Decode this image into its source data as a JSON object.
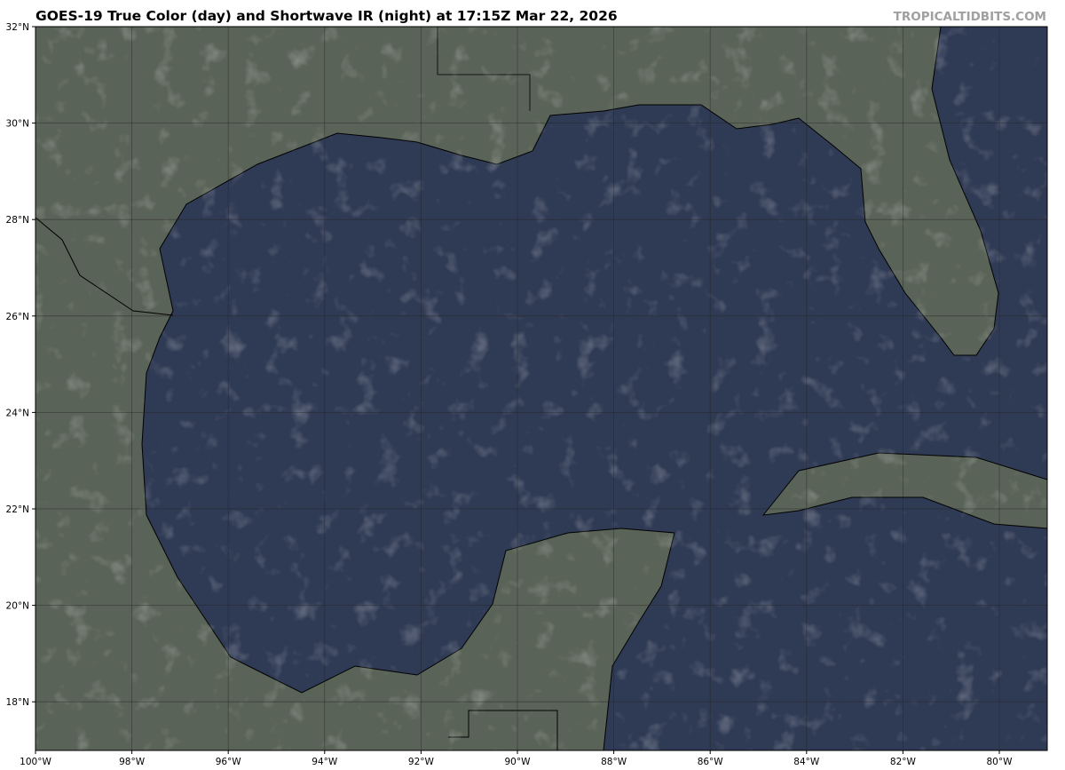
{
  "title": "GOES-19 True Color (day) and Shortwave IR (night) at 17:15Z Mar 22, 2026",
  "watermark": "TROPICALTIDBITS.COM",
  "colors": {
    "water": "#2f3a54",
    "land": "#5a6358",
    "grid": "#222222",
    "border": "#000000"
  },
  "axes": {
    "lon_ticks": [
      "100°W",
      "98°W",
      "96°W",
      "94°W",
      "92°W",
      "90°W",
      "88°W",
      "86°W",
      "84°W",
      "82°W",
      "80°W"
    ],
    "lon_values": [
      -100,
      -98,
      -96,
      -94,
      -92,
      -90,
      -88,
      -86,
      -84,
      -82,
      -80
    ],
    "lat_ticks": [
      "32°N",
      "30°N",
      "28°N",
      "26°N",
      "24°N",
      "22°N",
      "20°N",
      "18°N"
    ],
    "lat_values": [
      32,
      30,
      28,
      26,
      24,
      22,
      20,
      18
    ],
    "lon_range": [
      -100,
      -79
    ],
    "lat_range": [
      17,
      32
    ]
  }
}
